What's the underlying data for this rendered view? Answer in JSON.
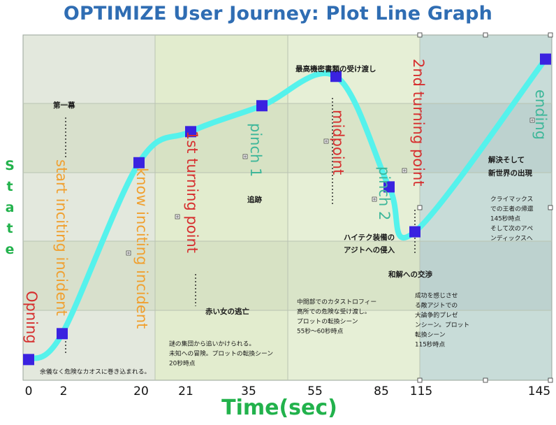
{
  "title": "OPTIMIZE User Journey: Plot Line Graph",
  "chart_data": {
    "type": "line",
    "title": "OPTIMIZE User Journey: Plot Line Graph",
    "xlabel": "Time(sec)",
    "ylabel": "State",
    "categories": [
      "0",
      "2",
      "20",
      "21",
      "35",
      "55",
      "85",
      "115",
      "145"
    ],
    "series": [
      {
        "points": [
          {
            "x": "0",
            "label": "Opning"
          },
          {
            "x": "2",
            "label": "start inciting incident"
          },
          {
            "x": "20",
            "label": "know inciting incident"
          },
          {
            "x": "21",
            "label": "1st turning point"
          },
          {
            "x": "35",
            "label": "pinch 1"
          },
          {
            "x": "55",
            "label": "midpoint"
          },
          {
            "x": "85",
            "label": "pinch 2"
          },
          {
            "x": "115",
            "label": "2nd turning point"
          },
          {
            "x": "145",
            "label": "ending"
          }
        ]
      }
    ],
    "point_labels": [
      "Opning",
      "start inciting incident",
      "know inciting incident",
      "1st turning point",
      "pinch 1",
      "midpoint",
      "pinch 2",
      "2nd turning point",
      "ending"
    ],
    "state_levels": [
      0.06,
      0.135,
      0.63,
      0.72,
      0.795,
      0.88,
      0.56,
      0.43,
      0.93
    ],
    "annotations": {
      "act1": "第一幕",
      "chase": "追跡",
      "highest": "最高機密書類の受け渡し",
      "hitech": "ハイテク装備の\nアジトへの侵入",
      "redwoman": "赤い女の逃亡",
      "reconcile": "和解への交渉",
      "resolution": "解決そして\n新世界の出現",
      "chaos": "余儀なく危険なカオスに巻き込まれる。",
      "mystery": "謎の集団から追いかけられる。\n未知への冒険。プロットの転換シーン\n20秒時点",
      "midnote": "中間部でのカタストロフィー\n高所での危険な受け渡し。\nプロットの転換シーン\n55秒〜60秒時点",
      "success": "成功を感じさせ\nる敵アジトでの\n大論争的プレゼ\nンシーン。プロット\n転換シーン\n115秒時点",
      "climax": "クライマックス\nでの王者の帰還\n145秒時点\nそして次のアペ\nンディックスへ"
    },
    "grid": true,
    "colors": {
      "line": "#55f2ec",
      "marker": "#3a22e0",
      "title": "#2f6db3",
      "axis_label": "#22b24c",
      "label_orange": "#f0a030",
      "label_red": "#d62f2f",
      "label_teal": "#3fb79a",
      "panel1": "#e3e8dd",
      "panel2": "#e2ecce",
      "panel3": "#e6efd6",
      "panel4": "#c8dcd8",
      "band": "#c9d6b8"
    }
  }
}
